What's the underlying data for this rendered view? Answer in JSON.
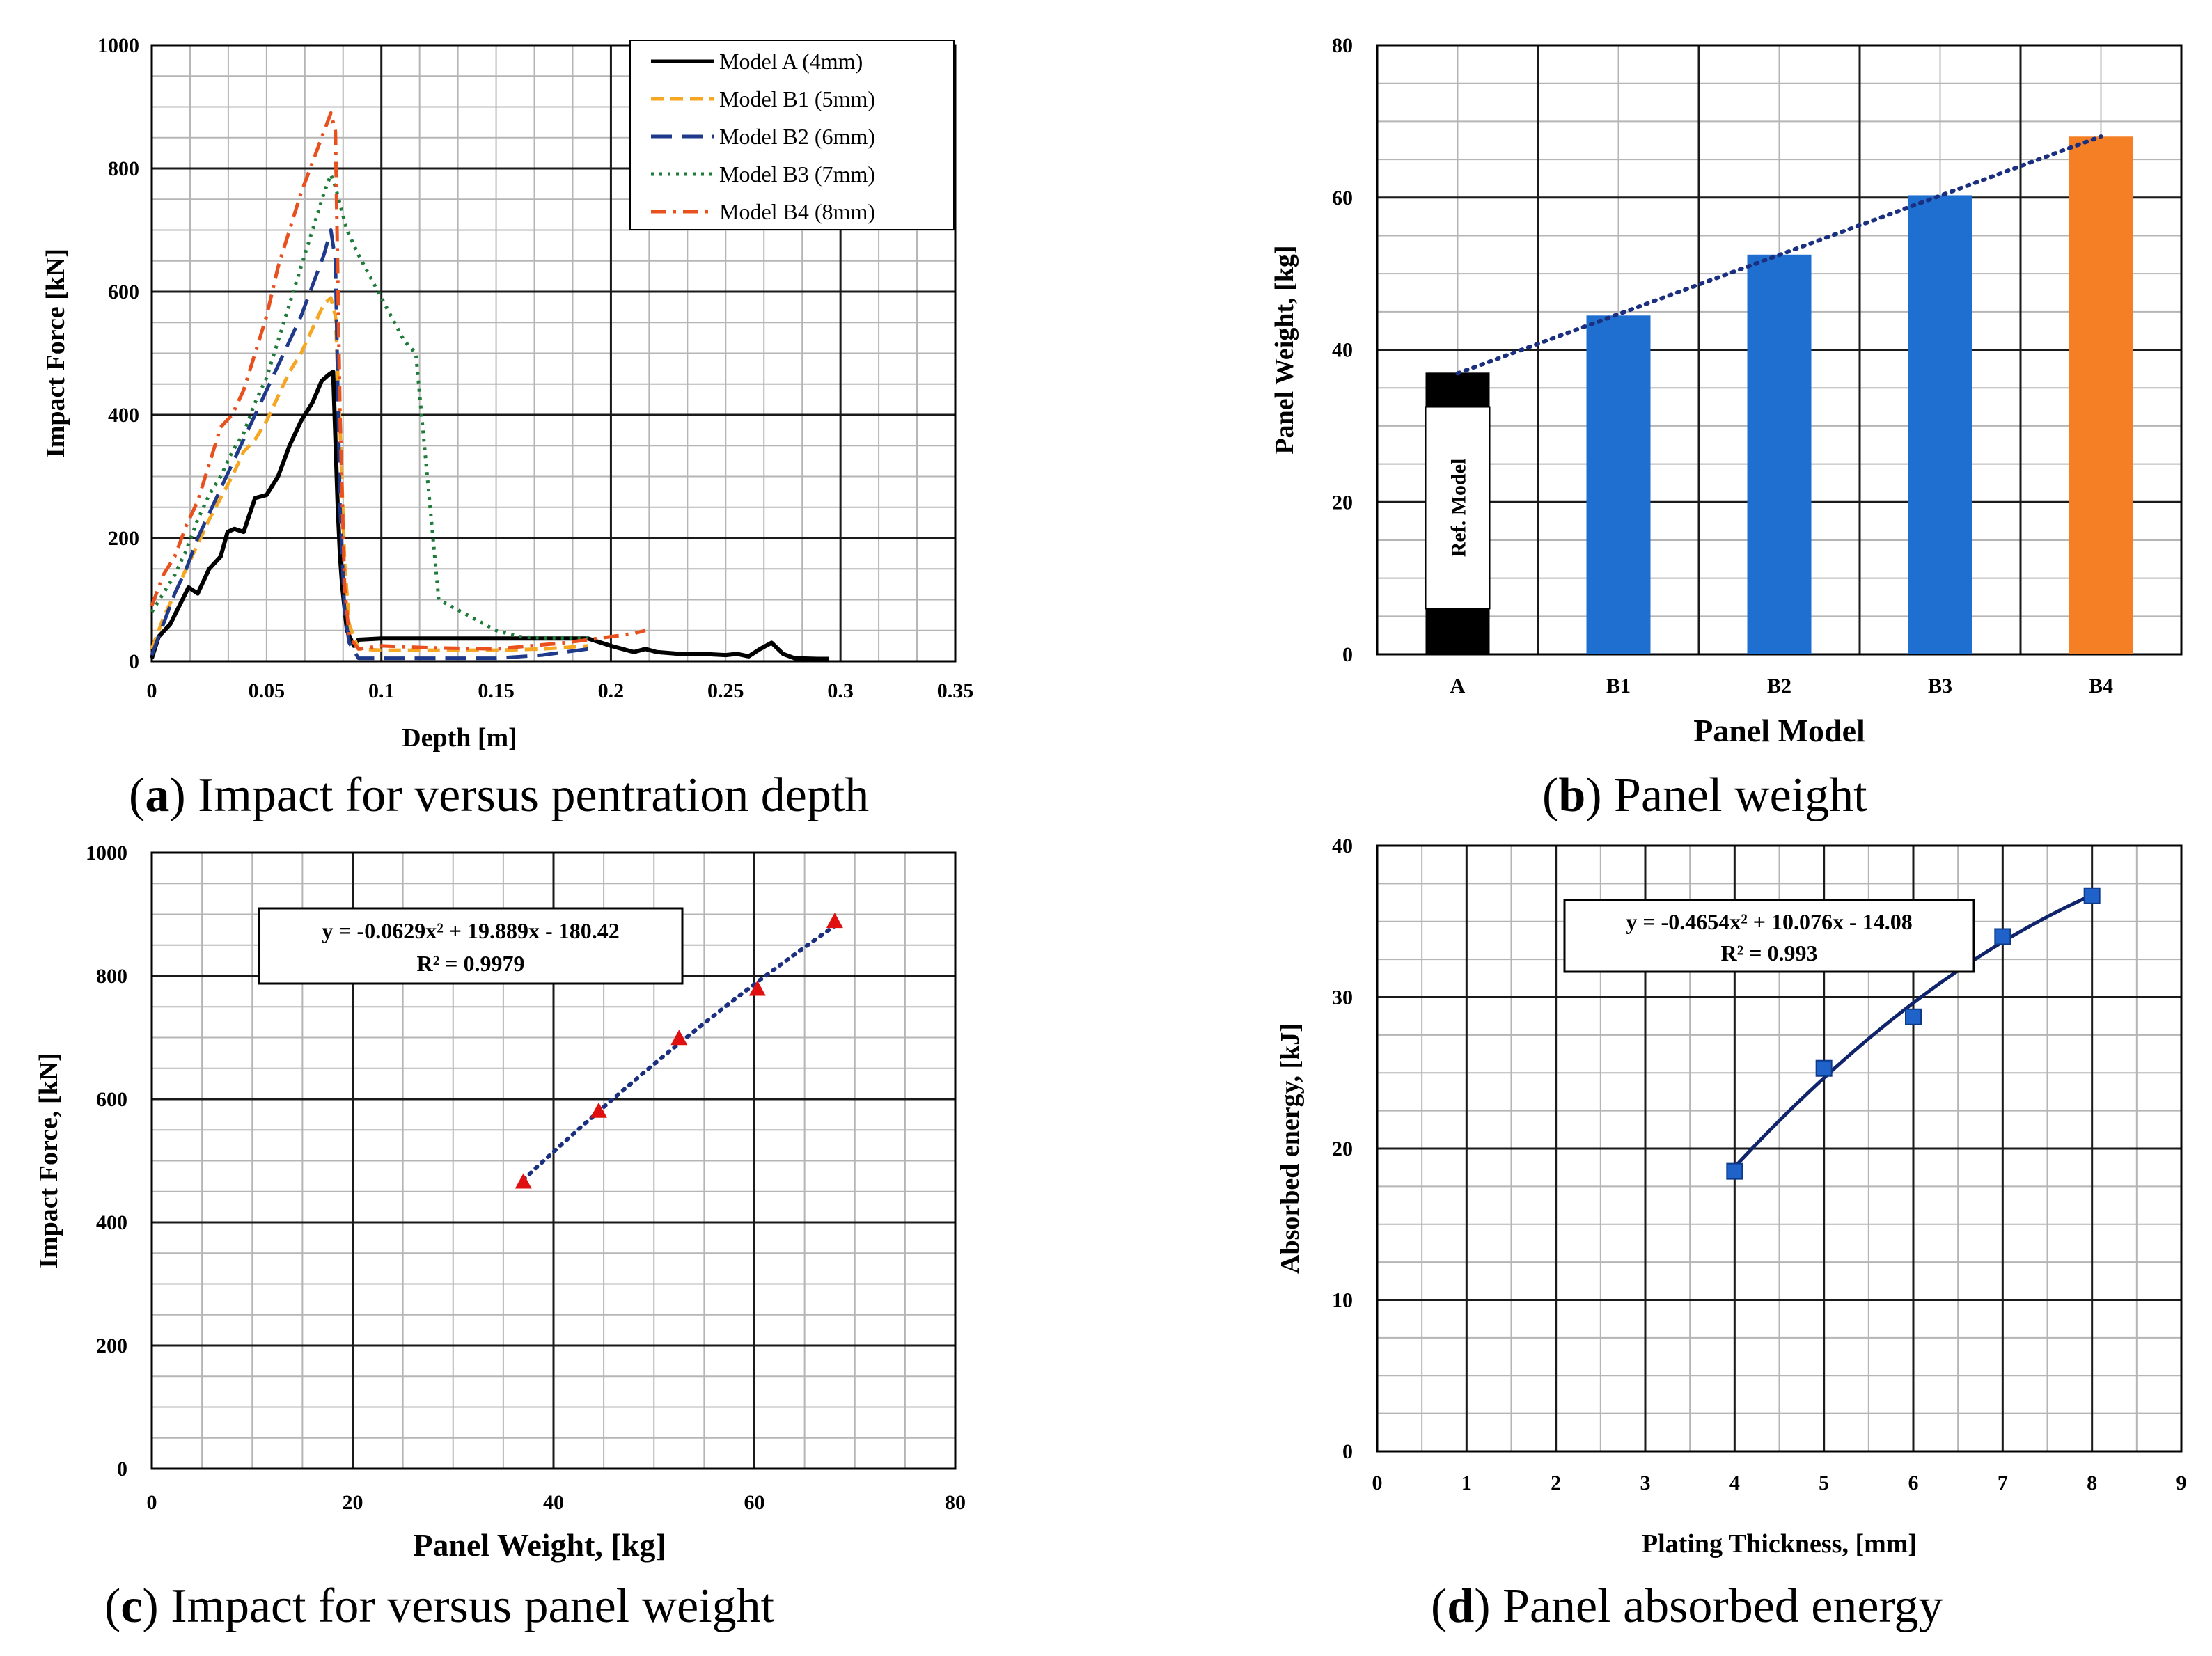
{
  "colors": {
    "model_a": "#000000",
    "model_b1": "#f5a623",
    "model_b2": "#1f3a8a",
    "model_b3": "#1e7b3a",
    "model_b4": "#e8501e",
    "bar_blue": "#1f6fd1",
    "bar_orange": "#f57f25",
    "bar_black": "#000000",
    "trend": "#1b2f80",
    "marker_red": "#e01010",
    "marker_blue": "#1f62c9",
    "fit_navy": "#10246b"
  },
  "captions": {
    "a": {
      "letter": "a",
      "text": ") Impact for versus pentration depth"
    },
    "b": {
      "letter": "b",
      "text": ") Panel weight"
    },
    "c": {
      "letter": "c",
      "text": ") Impact for versus panel weight"
    },
    "d": {
      "letter": "d",
      "text": ") Panel absorbed energy"
    }
  },
  "chart_data": [
    {
      "id": "a",
      "type": "line",
      "title": "",
      "xlabel": "Depth [m]",
      "ylabel": "Impact Force [kN]",
      "xlim": [
        0,
        0.35
      ],
      "ylim": [
        0,
        1000
      ],
      "xticks": [
        0,
        0.05,
        0.1,
        0.15,
        0.2,
        0.25,
        0.3,
        0.35
      ],
      "xtick_labels": [
        "0",
        "0.05",
        "0.1",
        "0.15",
        "0.2",
        "0.25",
        "0.3",
        "0.35"
      ],
      "yticks": [
        0,
        200,
        400,
        600,
        800,
        1000
      ],
      "grid": true,
      "legend": "top-right",
      "series": [
        {
          "name": "Model A (4mm)",
          "style": "solid",
          "color_key": "model_a",
          "x": [
            0,
            0.003,
            0.008,
            0.012,
            0.016,
            0.02,
            0.025,
            0.03,
            0.033,
            0.036,
            0.04,
            0.045,
            0.05,
            0.055,
            0.06,
            0.065,
            0.07,
            0.074,
            0.077,
            0.079,
            0.08,
            0.081,
            0.082,
            0.083,
            0.085,
            0.088,
            0.09,
            0.1,
            0.12,
            0.15,
            0.18,
            0.19,
            0.2,
            0.21,
            0.215,
            0.22,
            0.23,
            0.24,
            0.25,
            0.255,
            0.26,
            0.265,
            0.27,
            0.275,
            0.28,
            0.29,
            0.295
          ],
          "y": [
            5,
            40,
            60,
            90,
            120,
            110,
            150,
            170,
            210,
            215,
            210,
            265,
            270,
            300,
            350,
            390,
            420,
            455,
            465,
            470,
            360,
            250,
            170,
            120,
            50,
            25,
            35,
            37,
            37,
            37,
            37,
            37,
            25,
            15,
            20,
            15,
            12,
            12,
            10,
            12,
            8,
            20,
            30,
            12,
            5,
            4,
            4
          ]
        },
        {
          "name": "Model B1 (5mm)",
          "style": "dashed",
          "color_key": "model_b1",
          "x": [
            0,
            0.005,
            0.01,
            0.015,
            0.02,
            0.025,
            0.03,
            0.035,
            0.04,
            0.045,
            0.05,
            0.055,
            0.06,
            0.065,
            0.07,
            0.075,
            0.078,
            0.08,
            0.082,
            0.084,
            0.086,
            0.09,
            0.1,
            0.12,
            0.15,
            0.17,
            0.19
          ],
          "y": [
            20,
            70,
            110,
            150,
            190,
            230,
            265,
            300,
            340,
            360,
            390,
            430,
            470,
            500,
            540,
            580,
            590,
            560,
            380,
            160,
            60,
            20,
            18,
            18,
            18,
            20,
            25
          ]
        },
        {
          "name": "Model B2 (6mm)",
          "style": "longdash",
          "color_key": "model_b2",
          "x": [
            0,
            0.005,
            0.01,
            0.015,
            0.02,
            0.025,
            0.03,
            0.035,
            0.04,
            0.045,
            0.05,
            0.055,
            0.06,
            0.065,
            0.07,
            0.075,
            0.078,
            0.08,
            0.082,
            0.084,
            0.086,
            0.09,
            0.1,
            0.12,
            0.15,
            0.17,
            0.19
          ],
          "y": [
            10,
            60,
            110,
            150,
            200,
            240,
            280,
            320,
            360,
            400,
            440,
            480,
            520,
            560,
            610,
            660,
            700,
            650,
            250,
            80,
            30,
            5,
            5,
            5,
            5,
            10,
            20
          ]
        },
        {
          "name": "Model B3 (7mm)",
          "style": "dotted",
          "color_key": "model_b3",
          "x": [
            0,
            0.005,
            0.01,
            0.015,
            0.02,
            0.025,
            0.03,
            0.035,
            0.04,
            0.045,
            0.05,
            0.055,
            0.06,
            0.065,
            0.07,
            0.075,
            0.078,
            0.08,
            0.085,
            0.09,
            0.1,
            0.11,
            0.115,
            0.12,
            0.125,
            0.13,
            0.14,
            0.15,
            0.16,
            0.17,
            0.18,
            0.19
          ],
          "y": [
            80,
            110,
            140,
            180,
            230,
            270,
            300,
            340,
            370,
            420,
            460,
            520,
            580,
            640,
            700,
            760,
            790,
            770,
            700,
            660,
            590,
            520,
            500,
            300,
            100,
            90,
            70,
            50,
            40,
            38,
            38,
            38
          ]
        },
        {
          "name": "Model B4 (8mm)",
          "style": "dashdot",
          "color_key": "model_b4",
          "x": [
            0,
            0.005,
            0.01,
            0.015,
            0.02,
            0.025,
            0.03,
            0.035,
            0.04,
            0.045,
            0.05,
            0.055,
            0.06,
            0.065,
            0.07,
            0.075,
            0.078,
            0.08,
            0.082,
            0.084,
            0.086,
            0.09,
            0.1,
            0.12,
            0.15,
            0.18,
            0.2,
            0.21,
            0.215
          ],
          "y": [
            90,
            140,
            170,
            220,
            260,
            320,
            380,
            400,
            440,
            500,
            560,
            640,
            700,
            760,
            810,
            860,
            890,
            860,
            400,
            120,
            40,
            20,
            25,
            22,
            20,
            30,
            40,
            45,
            50
          ]
        }
      ]
    },
    {
      "id": "b",
      "type": "bar",
      "title": "",
      "xlabel": "Panel Model",
      "ylabel": "Panel Weight, [kg]",
      "ylim": [
        0,
        80
      ],
      "yticks": [
        0,
        20,
        40,
        60,
        80
      ],
      "grid": true,
      "categories": [
        "A",
        "B1",
        "B2",
        "B3",
        "B4"
      ],
      "values": [
        37,
        44.5,
        52.5,
        60.3,
        68
      ],
      "bar_color_keys": [
        "bar_black",
        "bar_blue",
        "bar_blue",
        "bar_blue",
        "bar_orange"
      ],
      "bar_annotation": "Ref. Model",
      "trendline": "linear-dotted"
    },
    {
      "id": "c",
      "type": "scatter",
      "title": "",
      "xlabel": "Panel Weight, [kg]",
      "ylabel": "Impact Force, [kN]",
      "xlim": [
        0,
        80
      ],
      "ylim": [
        0,
        1000
      ],
      "xticks": [
        0,
        20,
        40,
        60,
        80
      ],
      "yticks": [
        0,
        200,
        400,
        600,
        800,
        1000
      ],
      "grid": true,
      "x": [
        37,
        44.5,
        52.5,
        60.3,
        68
      ],
      "y": [
        465,
        580,
        698,
        778,
        888
      ],
      "marker": "triangle",
      "fit": {
        "equation": "y = -0.0629x² + 19.889x - 180.42",
        "r2": "R² = 0.9979",
        "a": -0.0629,
        "b": 19.889,
        "c": -180.42,
        "style": "dotted"
      }
    },
    {
      "id": "d",
      "type": "scatter",
      "title": "",
      "xlabel": "Plating Thickness, [mm]",
      "ylabel": "Absorbed energy, [kJ]",
      "xlim": [
        0,
        9
      ],
      "ylim": [
        0,
        40
      ],
      "xticks": [
        0,
        1,
        2,
        3,
        4,
        5,
        6,
        7,
        8,
        9
      ],
      "yticks": [
        0,
        10,
        20,
        30,
        40
      ],
      "grid": true,
      "x": [
        4,
        5,
        6,
        7,
        8
      ],
      "y": [
        18.5,
        25.3,
        28.7,
        34,
        36.7
      ],
      "marker": "square",
      "fit": {
        "equation": "y = -0.4654x² + 10.076x - 14.08",
        "r2": "R² = 0.993",
        "a": -0.4654,
        "b": 10.076,
        "c": -14.08,
        "style": "solid"
      }
    }
  ]
}
